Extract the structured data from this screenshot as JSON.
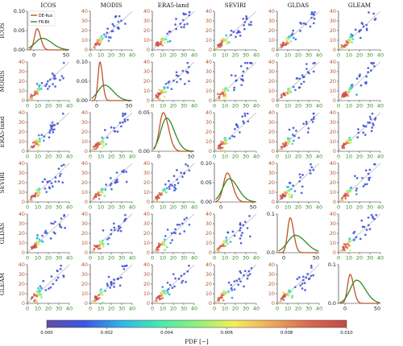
{
  "colors": {
    "de_rus": "#c0522a",
    "fr_bil": "#2e8b22",
    "one_to_one": "#b8b8b8",
    "x_ticks": "#2e8b22",
    "y_ticks": "#b5562c"
  },
  "chart_data": {
    "type": "scatter",
    "subtype": "scatter-matrix with density diagonal",
    "products": [
      "ICOS",
      "MODIS",
      "ERA5-land",
      "SEVIRI",
      "GLDAS",
      "GLEAM"
    ],
    "offdiag_xlim": [
      0,
      40
    ],
    "offdiag_ylim": [
      0,
      40
    ],
    "offdiag_ticks": [
      "0",
      "10",
      "20",
      "30",
      "40"
    ],
    "one_to_one_line": true,
    "diag_xticks": [
      "0",
      "50"
    ],
    "diag_xlim": [
      -10,
      55
    ],
    "diag_ymax": [
      0.1,
      0.1,
      0.05,
      0.1,
      0.1,
      0.1
    ],
    "diag_yticks": [
      [
        [
          "0.00",
          0
        ],
        [
          "0.05",
          0.05
        ],
        [
          "0.10",
          0.1
        ]
      ],
      [
        [
          "0.00",
          0
        ],
        [
          "0.05",
          0.05
        ],
        [
          "0.10",
          0.1
        ]
      ],
      [
        [
          "0.00",
          0
        ],
        [
          "0.05",
          0.05
        ]
      ],
      [
        [
          "0.00",
          0
        ],
        [
          "0.05",
          0.05
        ],
        [
          "0.10",
          0.1
        ]
      ],
      [
        [
          "0.0",
          0
        ],
        [
          "0.1",
          0.1
        ]
      ],
      [
        [
          "0.0",
          0
        ],
        [
          "0.1",
          0.1
        ]
      ]
    ],
    "density_series": [
      {
        "name": "DE-Rus",
        "peak": [
          [
            5,
            0.055
          ],
          [
            5,
            0.1
          ],
          [
            7,
            0.05
          ],
          [
            10,
            0.075
          ],
          [
            10,
            0.09
          ],
          [
            8,
            0.075
          ]
        ],
        "spread": [
          [
            4,
            0.055
          ],
          [
            3,
            0.1
          ],
          [
            6,
            0.048
          ],
          [
            6,
            0.07
          ],
          [
            4,
            0.09
          ],
          [
            4,
            0.072
          ]
        ]
      },
      {
        "name": "FR-Bil",
        "peak": [
          [
            13,
            0.03
          ],
          [
            12,
            0.04
          ],
          [
            12,
            0.043
          ],
          [
            13,
            0.06
          ],
          [
            18,
            0.045
          ],
          [
            18,
            0.06
          ]
        ],
        "spread": [
          [
            11,
            0.03
          ],
          [
            10,
            0.04
          ],
          [
            9,
            0.045
          ],
          [
            10,
            0.055
          ],
          [
            12,
            0.05
          ],
          [
            10,
            0.058
          ]
        ]
      }
    ],
    "legend": {
      "entries": [
        "DE-Rus",
        "FR-Bil"
      ],
      "location": "top-left panel"
    },
    "colorbar": {
      "label": "PDF [−]",
      "min": 0.0,
      "max": 0.01,
      "ticks": [
        "0.000",
        "0.002",
        "0.004",
        "0.006",
        "0.008",
        "0.010"
      ],
      "colormap": [
        "#5e4fa2",
        "#3d55e6",
        "#2fb6e6",
        "#48e8b2",
        "#8ef27a",
        "#f4ec5c",
        "#f0a85a",
        "#d8684d",
        "#c24b4b"
      ]
    },
    "points_per_panel": 42
  }
}
